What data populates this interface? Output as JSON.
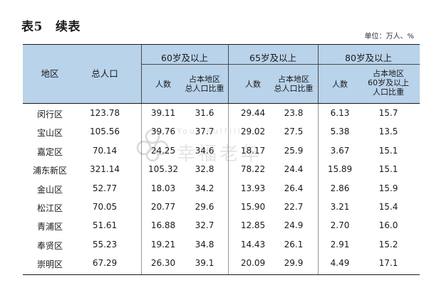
{
  "title": {
    "label": "表5",
    "suffix": "续表"
  },
  "unit": "单位：万人、%",
  "headers": {
    "region": "地区",
    "total": "总人口",
    "group60": "60岁及以上",
    "group65": "65岁及以上",
    "group80": "80岁及以上",
    "count": "人数",
    "share_line1": "占本地区",
    "share_line2": "总人口比重",
    "share80_line1": "占本地区",
    "share80_line2": "60岁及以上",
    "share80_line3": "人口比重"
  },
  "rows": [
    [
      "闵行区",
      "123.78",
      "39.11",
      "31.6",
      "29.44",
      "23.8",
      "6.13",
      "15.7"
    ],
    [
      "宝山区",
      "105.56",
      "39.76",
      "37.7",
      "29.02",
      "27.5",
      "5.38",
      "13.5"
    ],
    [
      "嘉定区",
      "70.14",
      "24.25",
      "34.6",
      "18.17",
      "25.9",
      "3.67",
      "15.1"
    ],
    [
      "浦东新区",
      "321.14",
      "105.32",
      "32.8",
      "78.22",
      "24.4",
      "15.89",
      "15.1"
    ],
    [
      "金山区",
      "52.77",
      "18.03",
      "34.2",
      "13.93",
      "26.4",
      "2.86",
      "15.9"
    ],
    [
      "松江区",
      "70.05",
      "20.77",
      "29.6",
      "15.90",
      "22.7",
      "3.21",
      "15.4"
    ],
    [
      "青浦区",
      "51.61",
      "16.88",
      "32.7",
      "12.85",
      "24.9",
      "2.70",
      "16.0"
    ],
    [
      "奉贤区",
      "55.23",
      "19.21",
      "34.8",
      "14.43",
      "26.1",
      "2.91",
      "15.2"
    ],
    [
      "崇明区",
      "67.29",
      "26.30",
      "39.1",
      "20.09",
      "29.9",
      "4.49",
      "17.1"
    ]
  ],
  "watermark": {
    "text_en": "Your Fulfilling",
    "text_cn": "幸福老年"
  }
}
